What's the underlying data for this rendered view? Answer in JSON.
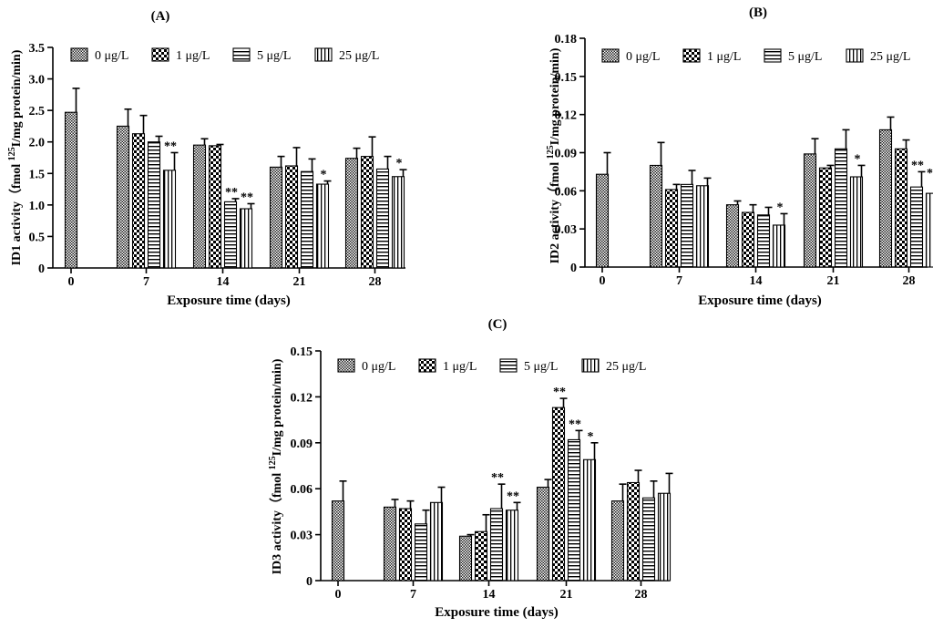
{
  "legend_labels": [
    "0 μg/L",
    "1 μg/L",
    "5 μg/L",
    "25 μg/L"
  ],
  "chart_data": [
    {
      "type": "bar",
      "panel": "(A)",
      "ylabel_main": "ID1 activity（fmol ",
      "ylabel_sup": "125",
      "ylabel_tail": "I/mg protein/min)",
      "xlabel": "Exposure time (days)",
      "ylim": [
        0,
        3.5
      ],
      "yticks": [
        "0",
        "0.5",
        "1.0",
        "1.5",
        "2.0",
        "2.5",
        "3.0",
        "3.5"
      ],
      "categories": [
        "0",
        "7",
        "14",
        "21",
        "28"
      ],
      "series": [
        {
          "name": "0 μg/L",
          "values": [
            2.47,
            2.25,
            1.95,
            1.6,
            1.74
          ],
          "errors": [
            0.38,
            0.27,
            0.1,
            0.17,
            0.16
          ]
        },
        {
          "name": "1 μg/L",
          "values": [
            null,
            2.13,
            1.94,
            1.62,
            1.77
          ],
          "errors": [
            null,
            0.29,
            0.02,
            0.29,
            0.31
          ]
        },
        {
          "name": "5 μg/L",
          "values": [
            null,
            2.0,
            1.05,
            1.53,
            1.57
          ],
          "errors": [
            null,
            0.09,
            0.05,
            0.2,
            0.2
          ]
        },
        {
          "name": "25 μg/L",
          "values": [
            null,
            1.55,
            0.94,
            1.33,
            1.45
          ],
          "errors": [
            null,
            0.28,
            0.08,
            0.05,
            0.11
          ]
        }
      ],
      "sig": [
        [],
        [
          "",
          "",
          "",
          "**"
        ],
        [
          "",
          "",
          "**",
          "**"
        ],
        [
          "",
          "",
          "",
          "*"
        ],
        [
          "",
          "",
          "",
          "*"
        ]
      ]
    },
    {
      "type": "bar",
      "panel": "(B)",
      "ylabel_main": "ID2 activity（fmol ",
      "ylabel_sup": "125",
      "ylabel_tail": "I/mg protein/min)",
      "xlabel": "Exposure time (days)",
      "ylim": [
        0,
        0.18
      ],
      "yticks": [
        "0",
        "0.03",
        "0.06",
        "0.09",
        "0.12",
        "0.15",
        "0.18"
      ],
      "categories": [
        "0",
        "7",
        "14",
        "21",
        "28"
      ],
      "series": [
        {
          "name": "0 μg/L",
          "values": [
            0.073,
            0.08,
            0.049,
            0.089,
            0.108
          ],
          "errors": [
            0.017,
            0.018,
            0.003,
            0.012,
            0.01
          ]
        },
        {
          "name": "1 μg/L",
          "values": [
            null,
            0.061,
            0.043,
            0.078,
            0.093
          ],
          "errors": [
            null,
            0.004,
            0.006,
            0.002,
            0.007
          ]
        },
        {
          "name": "5 μg/L",
          "values": [
            null,
            0.065,
            0.041,
            0.093,
            0.063
          ],
          "errors": [
            null,
            0.011,
            0.006,
            0.015,
            0.012
          ]
        },
        {
          "name": "25 μg/L",
          "values": [
            null,
            0.064,
            0.033,
            0.071,
            0.058
          ],
          "errors": [
            null,
            0.006,
            0.009,
            0.009,
            0.011
          ]
        }
      ],
      "sig": [
        [],
        [
          "",
          "",
          "",
          ""
        ],
        [
          "",
          "",
          "",
          "*"
        ],
        [
          "",
          "",
          "",
          "*"
        ],
        [
          "",
          "",
          "**",
          "**"
        ]
      ]
    },
    {
      "type": "bar",
      "panel": "(C)",
      "ylabel_main": "ID3 activity（fmol ",
      "ylabel_sup": "125",
      "ylabel_tail": "I/mg protein/min)",
      "xlabel": "Exposure time (days)",
      "ylim": [
        0,
        0.15
      ],
      "yticks": [
        "0",
        "0.03",
        "0.06",
        "0.09",
        "0.12",
        "0.15"
      ],
      "categories": [
        "0",
        "7",
        "14",
        "21",
        "28"
      ],
      "series": [
        {
          "name": "0 μg/L",
          "values": [
            0.052,
            0.048,
            0.029,
            0.061,
            0.052
          ],
          "errors": [
            0.013,
            0.005,
            0.001,
            0.005,
            0.011
          ]
        },
        {
          "name": "1 μg/L",
          "values": [
            null,
            0.047,
            0.032,
            0.113,
            0.064
          ],
          "errors": [
            null,
            0.005,
            0.011,
            0.006,
            0.008
          ]
        },
        {
          "name": "5 μg/L",
          "values": [
            null,
            0.037,
            0.047,
            0.092,
            0.054
          ],
          "errors": [
            null,
            0.009,
            0.016,
            0.006,
            0.011
          ]
        },
        {
          "name": "25 μg/L",
          "values": [
            null,
            0.051,
            0.046,
            0.079,
            0.057
          ],
          "errors": [
            null,
            0.01,
            0.005,
            0.011,
            0.013
          ]
        }
      ],
      "sig": [
        [],
        [
          "",
          "",
          "",
          ""
        ],
        [
          "",
          "",
          "**",
          "**"
        ],
        [
          "",
          "**",
          "**",
          "*"
        ],
        [
          "",
          "",
          "",
          ""
        ]
      ]
    }
  ]
}
